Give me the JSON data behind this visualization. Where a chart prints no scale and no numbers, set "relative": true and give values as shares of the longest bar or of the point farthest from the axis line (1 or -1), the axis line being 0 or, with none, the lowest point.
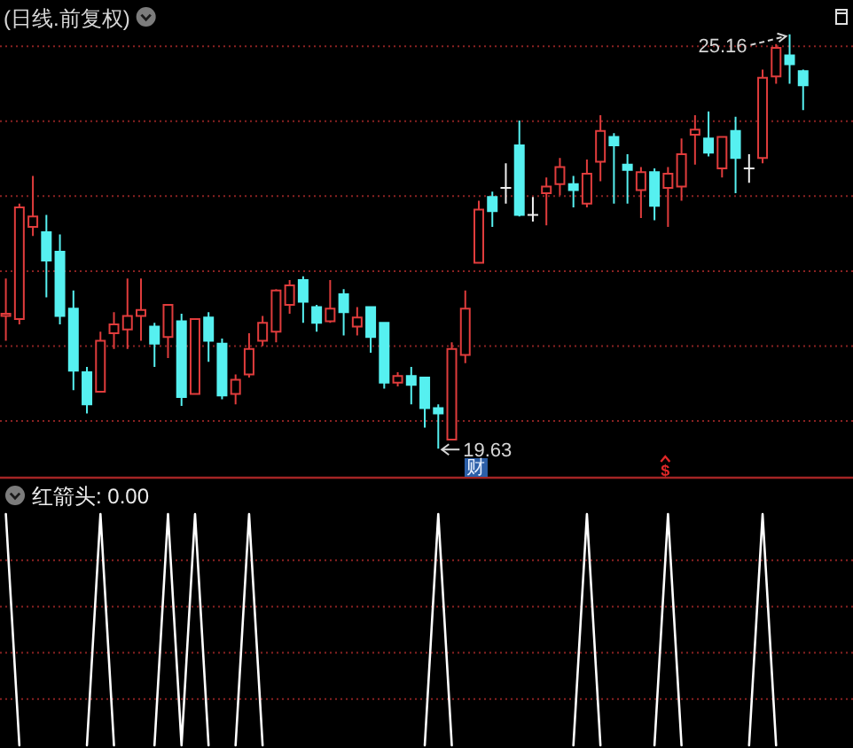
{
  "chart_data": [
    {
      "type": "candlestick",
      "title": "(日线.前复权)",
      "categories": [
        null,
        null,
        null,
        null,
        null,
        null,
        null,
        null,
        null,
        null,
        null,
        null,
        null,
        null,
        null,
        null,
        null,
        null,
        null,
        null,
        null,
        null,
        null,
        null,
        null,
        null,
        null,
        null,
        null,
        null,
        null,
        null,
        null,
        null,
        null,
        null,
        null,
        null,
        null,
        null,
        null,
        null,
        null,
        null,
        null,
        null,
        null,
        null,
        null,
        null,
        null,
        null,
        null,
        null,
        null,
        null,
        null,
        null,
        null,
        null
      ],
      "ohlc": [
        [
          21.4,
          21.9,
          21.07,
          21.43
        ],
        [
          21.36,
          22.9,
          21.29,
          22.85
        ],
        [
          22.59,
          23.27,
          22.47,
          22.73
        ],
        [
          22.52,
          22.75,
          21.65,
          22.14
        ],
        [
          22.26,
          22.49,
          21.29,
          21.4
        ],
        [
          21.5,
          21.74,
          20.41,
          20.67
        ],
        [
          20.65,
          20.72,
          20.1,
          20.22
        ],
        [
          20.39,
          21.19,
          20.39,
          21.07
        ],
        [
          21.17,
          21.45,
          20.96,
          21.29
        ],
        [
          21.22,
          21.9,
          20.96,
          21.4
        ],
        [
          21.4,
          21.9,
          21.07,
          21.48
        ],
        [
          21.26,
          21.31,
          20.72,
          21.03
        ],
        [
          21.12,
          21.55,
          20.84,
          21.55
        ],
        [
          21.33,
          21.43,
          20.2,
          20.32
        ],
        [
          20.36,
          21.36,
          20.36,
          21.36
        ],
        [
          21.38,
          21.45,
          20.79,
          21.07
        ],
        [
          21.03,
          21.1,
          20.29,
          20.34
        ],
        [
          20.36,
          20.62,
          20.22,
          20.55
        ],
        [
          20.62,
          21.17,
          20.58,
          20.96
        ],
        [
          21.07,
          21.4,
          21.0,
          21.31
        ],
        [
          21.19,
          21.76,
          21.05,
          21.74
        ],
        [
          21.55,
          21.88,
          21.43,
          21.81
        ],
        [
          21.88,
          21.93,
          21.31,
          21.59
        ],
        [
          21.52,
          21.55,
          21.19,
          21.31
        ],
        [
          21.33,
          21.88,
          21.31,
          21.5
        ],
        [
          21.69,
          21.76,
          21.14,
          21.45
        ],
        [
          21.26,
          21.52,
          21.14,
          21.38
        ],
        [
          21.52,
          21.52,
          20.91,
          21.12
        ],
        [
          21.31,
          21.31,
          20.43,
          20.51
        ],
        [
          20.51,
          20.65,
          20.46,
          20.6
        ],
        [
          20.6,
          20.72,
          20.22,
          20.48
        ],
        [
          20.58,
          20.58,
          19.91,
          20.17
        ],
        [
          20.17,
          20.22,
          19.63,
          20.1
        ],
        [
          19.75,
          21.05,
          19.75,
          20.96
        ],
        [
          20.88,
          21.74,
          20.77,
          21.5
        ],
        [
          22.11,
          22.94,
          22.11,
          22.82
        ],
        [
          22.99,
          23.06,
          22.59,
          22.8
        ],
        [
          23.11,
          23.44,
          22.9,
          23.11
        ],
        [
          23.68,
          24.01,
          22.73,
          22.75
        ],
        [
          22.75,
          22.99,
          22.66,
          22.75
        ],
        [
          23.04,
          23.25,
          22.61,
          23.13
        ],
        [
          23.16,
          23.51,
          23.01,
          23.39
        ],
        [
          23.16,
          23.27,
          22.85,
          23.08
        ],
        [
          22.9,
          23.49,
          22.85,
          23.3
        ],
        [
          23.46,
          24.08,
          23.2,
          23.87
        ],
        [
          23.79,
          23.84,
          22.9,
          23.68
        ],
        [
          23.42,
          23.56,
          22.9,
          23.35
        ],
        [
          23.08,
          23.39,
          22.71,
          23.32
        ],
        [
          23.32,
          23.37,
          22.68,
          22.87
        ],
        [
          23.11,
          23.39,
          22.59,
          23.3
        ],
        [
          23.13,
          23.77,
          22.94,
          23.56
        ],
        [
          23.82,
          24.08,
          23.42,
          23.89
        ],
        [
          23.77,
          24.13,
          23.53,
          23.58
        ],
        [
          23.37,
          23.79,
          23.25,
          23.79
        ],
        [
          23.87,
          24.06,
          23.04,
          23.51
        ],
        [
          23.37,
          23.56,
          23.18,
          23.37
        ],
        [
          23.51,
          24.69,
          23.44,
          24.58
        ],
        [
          24.6,
          25.03,
          24.5,
          24.98
        ],
        [
          24.88,
          25.16,
          24.5,
          24.76
        ],
        [
          24.67,
          24.69,
          24.15,
          24.48
        ]
      ],
      "colors": [
        "#e03c3c",
        "#e03c3c",
        "#e03c3c",
        "#56f0f0",
        "#56f0f0",
        "#56f0f0",
        "#56f0f0",
        "#e03c3c",
        "#e03c3c",
        "#e03c3c",
        "#e03c3c",
        "#56f0f0",
        "#e03c3c",
        "#56f0f0",
        "#e03c3c",
        "#56f0f0",
        "#56f0f0",
        "#e03c3c",
        "#e03c3c",
        "#e03c3c",
        "#e03c3c",
        "#e03c3c",
        "#56f0f0",
        "#56f0f0",
        "#e03c3c",
        "#56f0f0",
        "#e03c3c",
        "#56f0f0",
        "#56f0f0",
        "#e03c3c",
        "#56f0f0",
        "#56f0f0",
        "#56f0f0",
        "#e03c3c",
        "#e03c3c",
        "#e03c3c",
        "#56f0f0",
        "#f0f0f0",
        "#56f0f0",
        "#f0f0f0",
        "#e03c3c",
        "#e03c3c",
        "#56f0f0",
        "#e03c3c",
        "#e03c3c",
        "#56f0f0",
        "#56f0f0",
        "#e03c3c",
        "#56f0f0",
        "#e03c3c",
        "#e03c3c",
        "#e03c3c",
        "#56f0f0",
        "#e03c3c",
        "#56f0f0",
        "#f0f0f0",
        "#e03c3c",
        "#e03c3c",
        "#56f0f0",
        "#56f0f0"
      ],
      "yticks": [
        {
          "value": 20,
          "label": null
        },
        {
          "value": 21,
          "label": null
        },
        {
          "value": 22,
          "label": null
        },
        {
          "value": 23,
          "label": null
        },
        {
          "value": 24,
          "label": null
        },
        {
          "value": 25,
          "label": null
        }
      ],
      "grid": "y",
      "annotations": [
        "25.16",
        "19.63",
        "财",
        "$"
      ]
    },
    {
      "type": "line",
      "title": "红箭头: 0.00",
      "categories": [
        null,
        null,
        null,
        null,
        null,
        null,
        null,
        null,
        null,
        null,
        null,
        null,
        null,
        null,
        null,
        null,
        null,
        null,
        null,
        null,
        null,
        null,
        null,
        null,
        null,
        null,
        null,
        null,
        null,
        null,
        null,
        null,
        null,
        null,
        null,
        null,
        null,
        null,
        null,
        null,
        null,
        null,
        null,
        null,
        null,
        null,
        null,
        null,
        null,
        null,
        null,
        null,
        null,
        null,
        null,
        null,
        null,
        null,
        null,
        null
      ],
      "values": [
        1,
        0,
        null,
        null,
        null,
        null,
        0,
        1,
        0,
        null,
        null,
        0,
        1,
        0,
        1,
        0,
        null,
        0,
        1,
        0,
        null,
        null,
        null,
        null,
        null,
        null,
        null,
        null,
        null,
        null,
        null,
        0,
        1,
        0,
        null,
        null,
        null,
        null,
        null,
        null,
        null,
        null,
        0,
        1,
        0,
        null,
        null,
        null,
        0,
        1,
        0,
        null,
        null,
        null,
        null,
        0,
        1,
        0,
        null,
        null
      ],
      "color": "#ffffff",
      "relative": true,
      "ref_lines": [
        {
          "axis": "y",
          "value": 0.2,
          "color": "#8a2222",
          "line_style": "dotted"
        },
        {
          "axis": "y",
          "value": 0.4,
          "color": "#8a2222",
          "line_style": "dotted"
        },
        {
          "axis": "y",
          "value": 0.6,
          "color": "#8a2222",
          "line_style": "dotted"
        },
        {
          "axis": "y",
          "value": 0.8,
          "color": "#8a2222",
          "line_style": "dotted"
        }
      ]
    }
  ]
}
